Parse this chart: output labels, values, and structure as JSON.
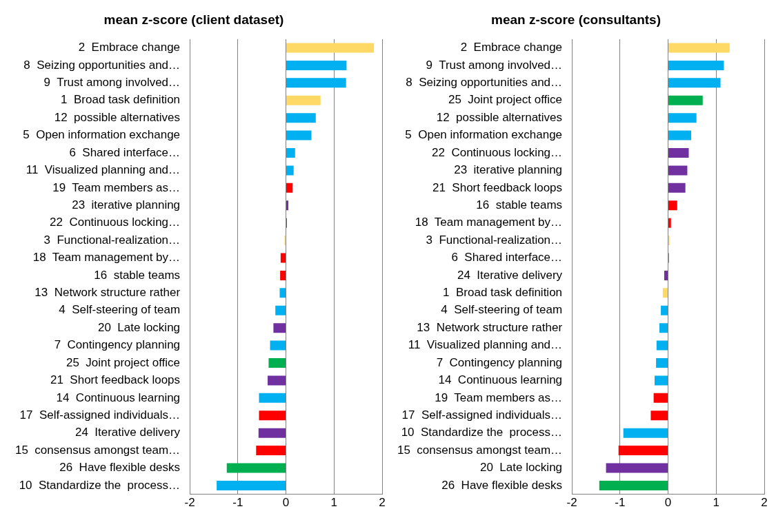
{
  "chart_data": [
    {
      "type": "bar",
      "orientation": "horizontal",
      "title": "mean z-score (client dataset)",
      "categories": [
        "2  Embrace change",
        "8  Seizing opportunities and…",
        "9  Trust among involved…",
        "1  Broad task definition",
        "12  possible alternatives",
        "5  Open information exchange",
        "6  Shared interface…",
        "11  Visualized planning and…",
        "19  Team members as…",
        "23  iterative planning",
        "22  Continuous locking…",
        "3  Functional-realization…",
        "18  Team management by…",
        "16  stable teams",
        "13  Network structure rather",
        "4  Self-steering of team",
        "20  Late locking",
        "7  Contingency planning",
        "25  Joint project office",
        "21  Short feedback loops",
        "14  Continuous learning",
        "17  Self-assigned individuals…",
        "24  Iterative delivery",
        "15  consensus amongst team…",
        "26  Have flexible desks",
        "10  Standardize the  process…"
      ],
      "values": [
        1.83,
        1.26,
        1.25,
        0.72,
        0.62,
        0.53,
        0.19,
        0.16,
        0.14,
        0.05,
        0.02,
        -0.03,
        -0.11,
        -0.12,
        -0.13,
        -0.22,
        -0.26,
        -0.33,
        -0.36,
        -0.38,
        -0.56,
        -0.56,
        -0.57,
        -0.62,
        -1.23,
        -1.44
      ],
      "colors": [
        "#ffd966",
        "#00b0f0",
        "#00b0f0",
        "#ffd966",
        "#00b0f0",
        "#00b0f0",
        "#00b0f0",
        "#00b0f0",
        "#ff0000",
        "#7030a0",
        "#7030a0",
        "#ffd966",
        "#ff0000",
        "#ff0000",
        "#00b0f0",
        "#00b0f0",
        "#7030a0",
        "#00b0f0",
        "#00b050",
        "#7030a0",
        "#00b0f0",
        "#ff0000",
        "#7030a0",
        "#ff0000",
        "#00b050",
        "#00b0f0"
      ],
      "xlim": [
        -2,
        2
      ],
      "xticks": [
        -2,
        -1,
        0,
        1,
        2
      ],
      "grid": "x"
    },
    {
      "type": "bar",
      "orientation": "horizontal",
      "title": "mean z-score (consultants)",
      "categories": [
        "2  Embrace change",
        "9  Trust among involved…",
        "8  Seizing opportunities and…",
        "25  Joint project office",
        "12  possible alternatives",
        "5  Open information exchange",
        "22  Continuous locking…",
        "23  iterative planning",
        "21  Short feedback loops",
        "16  stable teams",
        "18  Team management by…",
        "3  Functional-realization…",
        "6  Shared interface…",
        "24  Iterative delivery",
        "1  Broad task definition",
        "4  Self-steering of team",
        "13  Network structure rather",
        "11  Visualized planning and…",
        "7  Contingency planning",
        "14  Continuous learning",
        "19  Team members as…",
        "17  Self-assigned individuals…",
        "10  Standardize the  process…",
        "15  consensus amongst team…",
        "20  Late locking",
        "26  Have flexible desks"
      ],
      "values": [
        1.28,
        1.16,
        1.09,
        0.72,
        0.59,
        0.48,
        0.43,
        0.4,
        0.36,
        0.19,
        0.06,
        0.03,
        0.02,
        -0.08,
        -0.11,
        -0.15,
        -0.18,
        -0.24,
        -0.25,
        -0.28,
        -0.3,
        -0.36,
        -0.93,
        -1.03,
        -1.29,
        -1.43
      ],
      "colors": [
        "#ffd966",
        "#00b0f0",
        "#00b0f0",
        "#00b050",
        "#00b0f0",
        "#00b0f0",
        "#7030a0",
        "#7030a0",
        "#7030a0",
        "#ff0000",
        "#ff0000",
        "#ffd966",
        "#00b0f0",
        "#7030a0",
        "#ffd966",
        "#00b0f0",
        "#00b0f0",
        "#00b0f0",
        "#00b0f0",
        "#00b0f0",
        "#ff0000",
        "#ff0000",
        "#00b0f0",
        "#ff0000",
        "#7030a0",
        "#00b050"
      ],
      "xlim": [
        -2,
        2
      ],
      "xticks": [
        -2,
        -1,
        0,
        1,
        2
      ],
      "grid": "x"
    }
  ]
}
